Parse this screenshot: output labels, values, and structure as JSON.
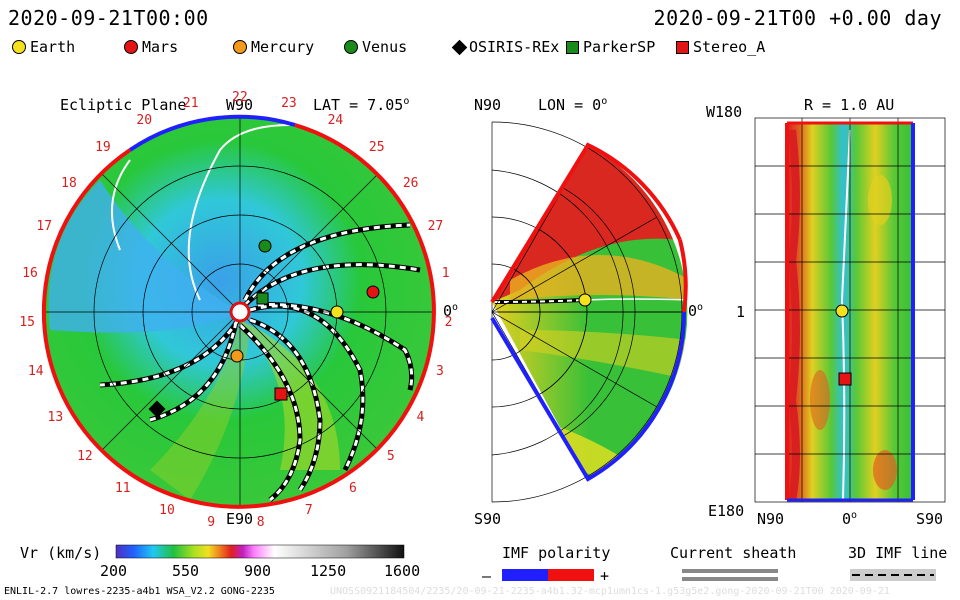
{
  "header": {
    "datetime_left": "2020-09-21T00:00",
    "datetime_right": "2020-09-21T00 +0.00 day"
  },
  "legend": [
    {
      "label": "Earth",
      "shape": "circle",
      "color": "#f4e31c"
    },
    {
      "label": "Mars",
      "shape": "circle",
      "color": "#e51414"
    },
    {
      "label": "Mercury",
      "shape": "circle",
      "color": "#f39a1c"
    },
    {
      "label": "Venus",
      "shape": "circle",
      "color": "#1a8a1a"
    },
    {
      "label": "OSIRIS-REx",
      "shape": "diamond",
      "color": "#000000"
    },
    {
      "label": "ParkerSP",
      "shape": "square",
      "color": "#1a8a1a"
    },
    {
      "label": "Stereo_A",
      "shape": "square",
      "color": "#e51414"
    }
  ],
  "ecliptic": {
    "title": "Ecliptic Plane",
    "top_label": "W90",
    "bottom_label": "E90",
    "right_label": "0",
    "lat_label": "LAT = 7.05",
    "deg": "o",
    "hour_ticks": [
      "19",
      "20",
      "21",
      "22",
      "23",
      "24",
      "25",
      "26",
      "27",
      "1",
      "2",
      "3",
      "4",
      "5",
      "6",
      "7",
      "8",
      "9",
      "10",
      "11",
      "12",
      "13",
      "14",
      "15",
      "16",
      "17",
      "18"
    ]
  },
  "meridional": {
    "title": "LON = 0",
    "deg": "o",
    "top_label": "N90",
    "bottom_label": "S90",
    "right_label": "0",
    "right_deg": "o"
  },
  "radial": {
    "title": "R = 1.0 AU",
    "top_left": "W180",
    "mid_left": "1",
    "bottom_left": "E180",
    "x_left": "N90",
    "x_mid": "0",
    "x_mid_deg": "o",
    "x_right": "S90"
  },
  "colorbar": {
    "label": "Vr (km/s)",
    "ticks": [
      "200",
      "550",
      "900",
      "1250",
      "1600"
    ]
  },
  "imf": {
    "title": "IMF polarity",
    "minus": "–",
    "plus": "+"
  },
  "current_sheath": {
    "title": "Current sheath"
  },
  "imf_line": {
    "title": "3D IMF line"
  },
  "footer": {
    "left": "ENLIL-2.7 lowres-2235-a4b1 WSA_V2.2 GONG-2235",
    "right": "UNOSS0921184504/2235/20-09-21-2235-a4b1.32-mcp1umn1cs-1.g53g5e2.gong-2020-09-21T00 2020-09-21"
  }
}
